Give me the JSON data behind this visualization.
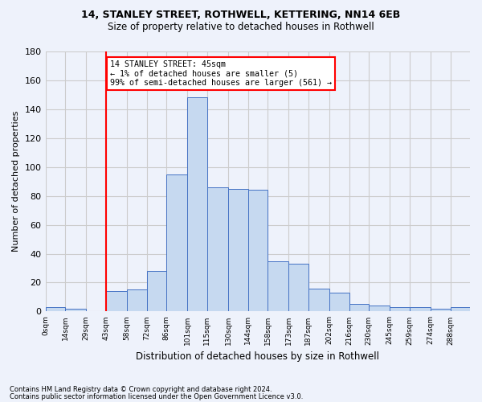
{
  "title1": "14, STANLEY STREET, ROTHWELL, KETTERING, NN14 6EB",
  "title2": "Size of property relative to detached houses in Rothwell",
  "xlabel": "Distribution of detached houses by size in Rothwell",
  "ylabel": "Number of detached properties",
  "bin_labels": [
    "0sqm",
    "14sqm",
    "29sqm",
    "43sqm",
    "58sqm",
    "72sqm",
    "86sqm",
    "101sqm",
    "115sqm",
    "130sqm",
    "144sqm",
    "158sqm",
    "173sqm",
    "187sqm",
    "202sqm",
    "216sqm",
    "230sqm",
    "245sqm",
    "259sqm",
    "274sqm",
    "288sqm"
  ],
  "bar_values": [
    3,
    2,
    0,
    14,
    15,
    28,
    95,
    148,
    86,
    85,
    84,
    35,
    33,
    16,
    13,
    5,
    4,
    3,
    3,
    2,
    3
  ],
  "bin_edges": [
    0,
    14,
    29,
    43,
    58,
    72,
    86,
    101,
    115,
    130,
    144,
    158,
    173,
    187,
    202,
    216,
    230,
    245,
    259,
    274,
    288,
    302
  ],
  "bar_color": "#c6d9f0",
  "bar_edge_color": "#4472c4",
  "property_line_x": 43,
  "annotation_text": "14 STANLEY STREET: 45sqm\n← 1% of detached houses are smaller (5)\n99% of semi-detached houses are larger (561) →",
  "annotation_box_color": "white",
  "annotation_box_edge_color": "red",
  "red_line_color": "red",
  "ylim": [
    0,
    180
  ],
  "yticks": [
    0,
    20,
    40,
    60,
    80,
    100,
    120,
    140,
    160,
    180
  ],
  "footer1": "Contains HM Land Registry data © Crown copyright and database right 2024.",
  "footer2": "Contains public sector information licensed under the Open Government Licence v3.0.",
  "grid_color": "#cccccc",
  "bg_color": "#eef2fb"
}
